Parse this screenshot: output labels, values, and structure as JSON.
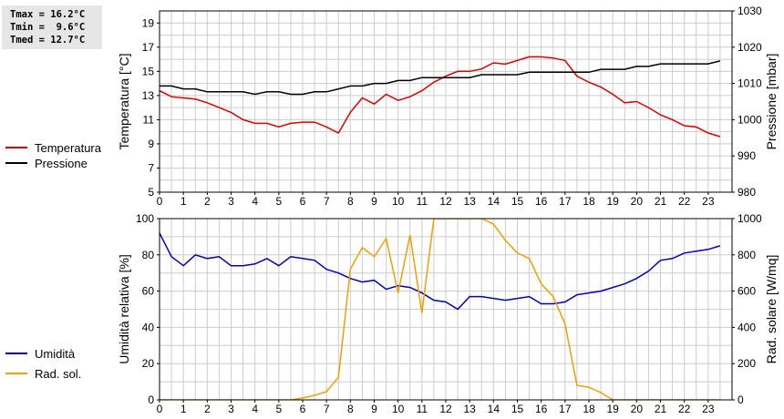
{
  "stats": {
    "tmax": "Tmax = 16.2°C",
    "tmin": "Tmin =  9.6°C",
    "tmed": "Tmed = 12.7°C"
  },
  "colors": {
    "temperatura": "#dd0000",
    "pressione": "#000000",
    "umidita": "#0000bb",
    "radsol": "#f0a000",
    "grid": "#cccccc"
  },
  "chart_data": [
    {
      "type": "line",
      "xlim": [
        0,
        24
      ],
      "xticks": [
        "0",
        "1",
        "2",
        "3",
        "4",
        "5",
        "6",
        "7",
        "8",
        "9",
        "10",
        "11",
        "12",
        "13",
        "14",
        "15",
        "16",
        "17",
        "18",
        "19",
        "20",
        "21",
        "22",
        "23"
      ],
      "ylabel": "Temperatura [°C]",
      "ylim": [
        5,
        20
      ],
      "yticks": [
        "5",
        "7",
        "9",
        "11",
        "13",
        "15",
        "17",
        "19"
      ],
      "y2label": "Pressione [mbar]",
      "y2lim": [
        980,
        1030
      ],
      "y2ticks": [
        "980",
        "990",
        "1000",
        "1010",
        "1020",
        "1030"
      ],
      "legend_placement": "left",
      "grid": true,
      "series": [
        {
          "name": "Temperatura",
          "axis": "left",
          "points": [
            [
              0,
              13.4
            ],
            [
              0.5,
              12.9
            ],
            [
              1,
              12.8
            ],
            [
              1.5,
              12.7
            ],
            [
              2,
              12.4
            ],
            [
              2.5,
              12.0
            ],
            [
              3,
              11.6
            ],
            [
              3.5,
              11.0
            ],
            [
              4,
              10.7
            ],
            [
              4.5,
              10.7
            ],
            [
              5,
              10.4
            ],
            [
              5.5,
              10.7
            ],
            [
              6,
              10.8
            ],
            [
              6.5,
              10.8
            ],
            [
              7,
              10.4
            ],
            [
              7.5,
              9.9
            ],
            [
              8,
              11.6
            ],
            [
              8.5,
              12.8
            ],
            [
              9,
              12.3
            ],
            [
              9.5,
              13.1
            ],
            [
              10,
              12.6
            ],
            [
              10.5,
              12.9
            ],
            [
              11,
              13.4
            ],
            [
              11.5,
              14.1
            ],
            [
              12,
              14.6
            ],
            [
              12.5,
              15.0
            ],
            [
              13,
              15.0
            ],
            [
              13.5,
              15.2
            ],
            [
              14,
              15.7
            ],
            [
              14.5,
              15.6
            ],
            [
              15,
              15.9
            ],
            [
              15.5,
              16.2
            ],
            [
              16,
              16.2
            ],
            [
              16.5,
              16.1
            ],
            [
              17,
              15.9
            ],
            [
              17.5,
              14.6
            ],
            [
              18,
              14.1
            ],
            [
              18.5,
              13.7
            ],
            [
              19,
              13.1
            ],
            [
              19.5,
              12.4
            ],
            [
              20,
              12.5
            ],
            [
              20.5,
              12.0
            ],
            [
              21,
              11.4
            ],
            [
              21.5,
              11.0
            ],
            [
              22,
              10.5
            ],
            [
              22.5,
              10.4
            ],
            [
              23,
              9.9
            ],
            [
              23.5,
              9.6
            ]
          ]
        },
        {
          "name": "Pressione",
          "axis": "right",
          "points": [
            [
              0,
              1009.3
            ],
            [
              0.5,
              1009.3
            ],
            [
              1,
              1008.5
            ],
            [
              1.5,
              1008.5
            ],
            [
              2,
              1007.7
            ],
            [
              2.5,
              1007.7
            ],
            [
              3,
              1007.7
            ],
            [
              3.5,
              1007.7
            ],
            [
              4,
              1007.0
            ],
            [
              4.5,
              1007.7
            ],
            [
              5,
              1007.7
            ],
            [
              5.5,
              1007.0
            ],
            [
              6,
              1007.0
            ],
            [
              6.5,
              1007.7
            ],
            [
              7,
              1007.7
            ],
            [
              7.5,
              1008.5
            ],
            [
              8,
              1009.3
            ],
            [
              8.5,
              1009.3
            ],
            [
              9,
              1010.0
            ],
            [
              9.5,
              1010.0
            ],
            [
              10,
              1010.8
            ],
            [
              10.5,
              1010.8
            ],
            [
              11,
              1011.6
            ],
            [
              11.5,
              1011.6
            ],
            [
              12,
              1011.6
            ],
            [
              12.5,
              1011.6
            ],
            [
              13,
              1011.6
            ],
            [
              13.5,
              1012.4
            ],
            [
              14,
              1012.4
            ],
            [
              14.5,
              1012.4
            ],
            [
              15,
              1012.4
            ],
            [
              15.5,
              1013.1
            ],
            [
              16,
              1013.1
            ],
            [
              16.5,
              1013.1
            ],
            [
              17,
              1013.1
            ],
            [
              17.5,
              1013.1
            ],
            [
              18,
              1013.1
            ],
            [
              18.5,
              1013.9
            ],
            [
              19,
              1013.9
            ],
            [
              19.5,
              1013.9
            ],
            [
              20,
              1014.7
            ],
            [
              20.5,
              1014.7
            ],
            [
              21,
              1015.4
            ],
            [
              21.5,
              1015.4
            ],
            [
              22,
              1015.4
            ],
            [
              22.5,
              1015.4
            ],
            [
              23,
              1015.4
            ],
            [
              23.5,
              1016.2
            ]
          ]
        }
      ]
    },
    {
      "type": "line",
      "xlim": [
        0,
        24
      ],
      "xticks": [
        "0",
        "1",
        "2",
        "3",
        "4",
        "5",
        "6",
        "7",
        "8",
        "9",
        "10",
        "11",
        "12",
        "13",
        "14",
        "15",
        "16",
        "17",
        "18",
        "19",
        "20",
        "21",
        "22",
        "23"
      ],
      "ylabel": "Umidità relativa [%]",
      "ylim": [
        0,
        100
      ],
      "yticks": [
        "0",
        "20",
        "40",
        "60",
        "80",
        "100"
      ],
      "y2label": "Rad. solare [W/mq]",
      "y2lim": [
        0,
        1000
      ],
      "y2ticks": [
        "0",
        "200",
        "400",
        "600",
        "800",
        "1000"
      ],
      "legend_placement": "left",
      "grid": true,
      "series": [
        {
          "name": "Umidità",
          "axis": "left",
          "points": [
            [
              0,
              92
            ],
            [
              0.5,
              79
            ],
            [
              1,
              74
            ],
            [
              1.5,
              80
            ],
            [
              2,
              78
            ],
            [
              2.5,
              79
            ],
            [
              3,
              74
            ],
            [
              3.5,
              74
            ],
            [
              4,
              75
            ],
            [
              4.5,
              78
            ],
            [
              5,
              74
            ],
            [
              5.5,
              79
            ],
            [
              6,
              78
            ],
            [
              6.5,
              77
            ],
            [
              7,
              72
            ],
            [
              7.5,
              70
            ],
            [
              8,
              67
            ],
            [
              8.5,
              65
            ],
            [
              9,
              66
            ],
            [
              9.5,
              61
            ],
            [
              10,
              63
            ],
            [
              10.5,
              62
            ],
            [
              11,
              59
            ],
            [
              11.5,
              55
            ],
            [
              12,
              54
            ],
            [
              12.5,
              50
            ],
            [
              13,
              57
            ],
            [
              13.5,
              57
            ],
            [
              14,
              56
            ],
            [
              14.5,
              55
            ],
            [
              15,
              56
            ],
            [
              15.5,
              57
            ],
            [
              16,
              53
            ],
            [
              16.5,
              53
            ],
            [
              17,
              54
            ],
            [
              17.5,
              58
            ],
            [
              18,
              59
            ],
            [
              18.5,
              60
            ],
            [
              19,
              62
            ],
            [
              19.5,
              64
            ],
            [
              20,
              67
            ],
            [
              20.5,
              71
            ],
            [
              21,
              77
            ],
            [
              21.5,
              78
            ],
            [
              22,
              81
            ],
            [
              22.5,
              82
            ],
            [
              23,
              83
            ],
            [
              23.5,
              85
            ]
          ]
        },
        {
          "name": "Rad. sol.",
          "axis": "right",
          "points": [
            [
              0,
              0
            ],
            [
              0.5,
              0
            ],
            [
              1,
              0
            ],
            [
              1.5,
              0
            ],
            [
              2,
              0
            ],
            [
              2.5,
              0
            ],
            [
              3,
              0
            ],
            [
              3.5,
              0
            ],
            [
              4,
              0
            ],
            [
              4.5,
              0
            ],
            [
              5,
              0
            ],
            [
              5.5,
              0
            ],
            [
              6,
              10
            ],
            [
              6.5,
              25
            ],
            [
              7,
              45
            ],
            [
              7.5,
              125
            ],
            [
              8,
              720
            ],
            [
              8.5,
              840
            ],
            [
              9,
              790
            ],
            [
              9.5,
              890
            ],
            [
              10,
              590
            ],
            [
              10.5,
              910
            ],
            [
              11,
              480
            ],
            [
              11.5,
              1000
            ],
            [
              12,
              1000
            ],
            [
              12.5,
              1000
            ],
            [
              13,
              1000
            ],
            [
              13.5,
              1000
            ],
            [
              14,
              970
            ],
            [
              14.5,
              880
            ],
            [
              15,
              810
            ],
            [
              15.5,
              780
            ],
            [
              16,
              640
            ],
            [
              16.5,
              570
            ],
            [
              17,
              420
            ],
            [
              17.5,
              80
            ],
            [
              18,
              70
            ],
            [
              18.5,
              40
            ],
            [
              19,
              0
            ],
            [
              19.5,
              0
            ],
            [
              20,
              0
            ],
            [
              20.5,
              0
            ],
            [
              21,
              0
            ],
            [
              21.5,
              0
            ],
            [
              22,
              0
            ],
            [
              22.5,
              0
            ],
            [
              23,
              0
            ],
            [
              23.5,
              0
            ]
          ]
        }
      ]
    }
  ]
}
